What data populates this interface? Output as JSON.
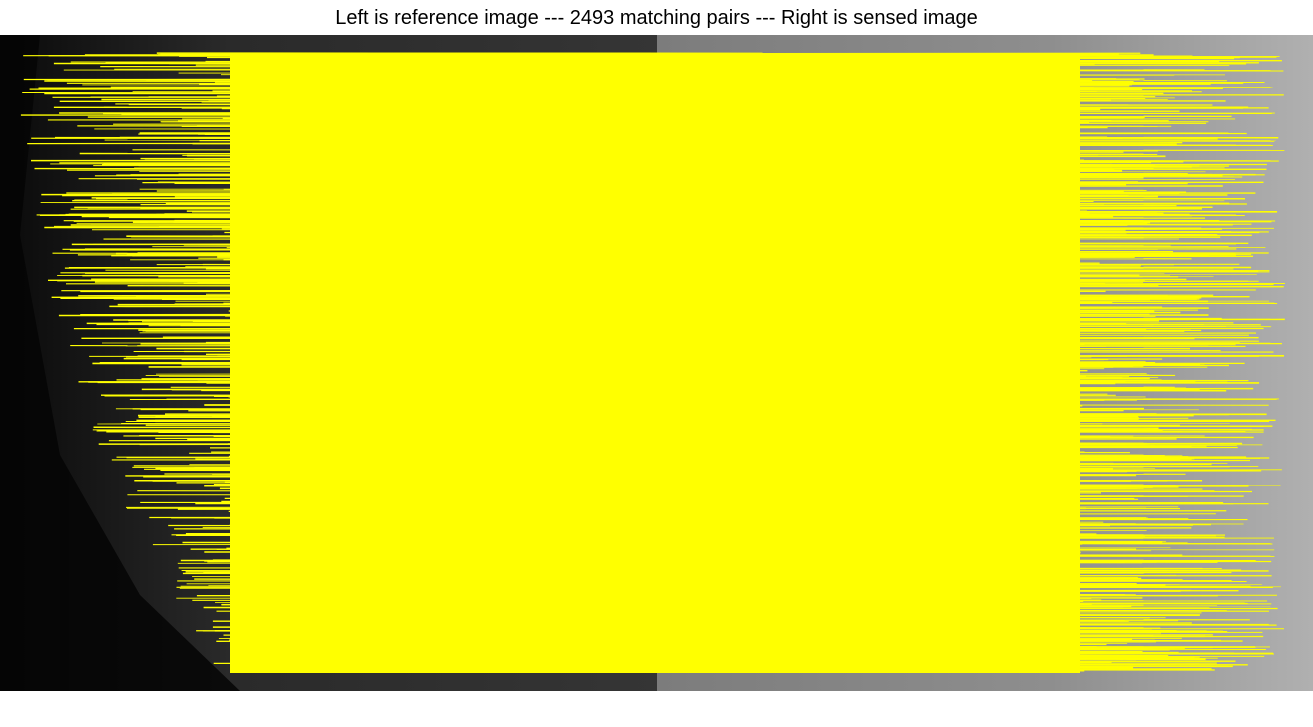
{
  "figure": {
    "title": "Left is reference image --- 2493 matching pairs --- Right is sensed image",
    "match_count": 2493,
    "left_image": "reference image",
    "right_image": "sensed image"
  },
  "colors": {
    "match_line": "#ffff00",
    "reference_background": "#1a1a1a",
    "sensed_background": "#8a8a8a",
    "page_background": "#ffffff"
  }
}
